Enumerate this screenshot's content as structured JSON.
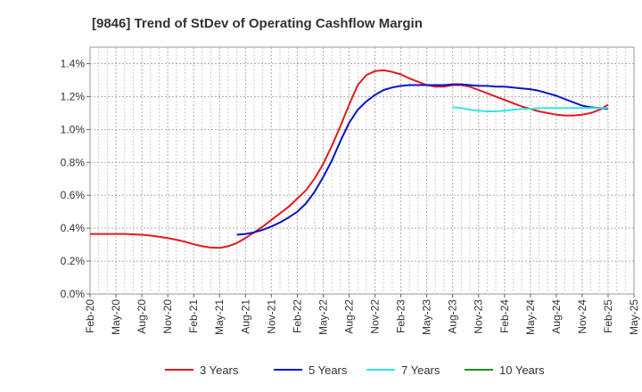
{
  "chart_data": {
    "type": "line",
    "title": "[9846]  Trend of StDev of Operating Cashflow Margin",
    "xlabel": "",
    "ylabel": "",
    "x_ticks": [
      "Feb-20",
      "May-20",
      "Aug-20",
      "Nov-20",
      "Feb-21",
      "May-21",
      "Aug-21",
      "Nov-21",
      "Feb-22",
      "May-22",
      "Aug-22",
      "Nov-22",
      "Feb-23",
      "May-23",
      "Aug-23",
      "Nov-23",
      "Feb-24",
      "May-24",
      "Aug-24",
      "Nov-24",
      "Feb-25",
      "May-25"
    ],
    "y_ticks": [
      "0.0%",
      "0.2%",
      "0.4%",
      "0.6%",
      "0.8%",
      "1.0%",
      "1.2%",
      "1.4%"
    ],
    "ylim": [
      0,
      1.5
    ],
    "y_unit": "%",
    "grid": true,
    "legend_position": "bottom",
    "series": [
      {
        "name": "3 Years",
        "color": "#e31a1c",
        "x": [
          "Feb-20",
          "Mar-20",
          "Apr-20",
          "May-20",
          "Jun-20",
          "Jul-20",
          "Aug-20",
          "Sep-20",
          "Oct-20",
          "Nov-20",
          "Dec-20",
          "Jan-21",
          "Feb-21",
          "Mar-21",
          "Apr-21",
          "May-21",
          "Jun-21",
          "Jul-21",
          "Aug-21",
          "Sep-21",
          "Oct-21",
          "Nov-21",
          "Dec-21",
          "Jan-22",
          "Feb-22",
          "Mar-22",
          "Apr-22",
          "May-22",
          "Jun-22",
          "Jul-22",
          "Aug-22",
          "Sep-22",
          "Oct-22",
          "Nov-22",
          "Dec-22",
          "Jan-23",
          "Feb-23",
          "Mar-23",
          "Apr-23",
          "May-23",
          "Jun-23",
          "Jul-23",
          "Aug-23",
          "Sep-23",
          "Oct-23",
          "Nov-23",
          "Dec-23",
          "Jan-24",
          "Feb-24",
          "Mar-24",
          "Apr-24",
          "May-24",
          "Jun-24",
          "Jul-24",
          "Aug-24",
          "Sep-24",
          "Oct-24",
          "Nov-24",
          "Dec-24",
          "Jan-25",
          "Feb-25"
        ],
        "values": [
          0.365,
          0.365,
          0.365,
          0.365,
          0.365,
          0.363,
          0.36,
          0.355,
          0.348,
          0.34,
          0.33,
          0.318,
          0.302,
          0.29,
          0.282,
          0.28,
          0.29,
          0.31,
          0.34,
          0.375,
          0.41,
          0.45,
          0.49,
          0.53,
          0.58,
          0.63,
          0.7,
          0.79,
          0.9,
          1.02,
          1.15,
          1.27,
          1.33,
          1.355,
          1.36,
          1.35,
          1.335,
          1.31,
          1.29,
          1.27,
          1.26,
          1.26,
          1.27,
          1.27,
          1.26,
          1.24,
          1.22,
          1.2,
          1.18,
          1.16,
          1.14,
          1.125,
          1.11,
          1.1,
          1.09,
          1.085,
          1.085,
          1.09,
          1.1,
          1.12,
          1.15
        ]
      },
      {
        "name": "5 Years",
        "color": "#0a14c8",
        "x": [
          "Jul-21",
          "Aug-21",
          "Sep-21",
          "Oct-21",
          "Nov-21",
          "Dec-21",
          "Jan-22",
          "Feb-22",
          "Mar-22",
          "Apr-22",
          "May-22",
          "Jun-22",
          "Jul-22",
          "Aug-22",
          "Sep-22",
          "Oct-22",
          "Nov-22",
          "Dec-22",
          "Jan-23",
          "Feb-23",
          "Mar-23",
          "Apr-23",
          "May-23",
          "Jun-23",
          "Jul-23",
          "Aug-23",
          "Sep-23",
          "Oct-23",
          "Nov-23",
          "Dec-23",
          "Jan-24",
          "Feb-24",
          "Mar-24",
          "Apr-24",
          "May-24",
          "Jun-24",
          "Jul-24",
          "Aug-24",
          "Sep-24",
          "Oct-24",
          "Nov-24",
          "Dec-24",
          "Jan-25",
          "Feb-25"
        ],
        "values": [
          0.36,
          0.365,
          0.375,
          0.39,
          0.41,
          0.435,
          0.465,
          0.5,
          0.55,
          0.62,
          0.71,
          0.81,
          0.93,
          1.04,
          1.12,
          1.17,
          1.21,
          1.24,
          1.255,
          1.265,
          1.27,
          1.27,
          1.27,
          1.27,
          1.27,
          1.275,
          1.275,
          1.27,
          1.265,
          1.265,
          1.26,
          1.26,
          1.255,
          1.25,
          1.245,
          1.235,
          1.22,
          1.205,
          1.185,
          1.165,
          1.145,
          1.135,
          1.13,
          1.125
        ]
      },
      {
        "name": "7 Years",
        "color": "#33e6e6",
        "x": [
          "Aug-23",
          "Sep-23",
          "Oct-23",
          "Nov-23",
          "Dec-23",
          "Jan-24",
          "Feb-24",
          "Mar-24",
          "Apr-24",
          "May-24",
          "Jun-24",
          "Jul-24",
          "Aug-24",
          "Sep-24",
          "Oct-24",
          "Nov-24",
          "Dec-24",
          "Jan-25",
          "Feb-25"
        ],
        "values": [
          1.135,
          1.13,
          1.12,
          1.115,
          1.11,
          1.11,
          1.115,
          1.12,
          1.125,
          1.125,
          1.13,
          1.13,
          1.13,
          1.13,
          1.13,
          1.13,
          1.13,
          1.13,
          1.13
        ]
      },
      {
        "name": "10 Years",
        "color": "#1a8f1a",
        "x": [],
        "values": []
      }
    ]
  }
}
